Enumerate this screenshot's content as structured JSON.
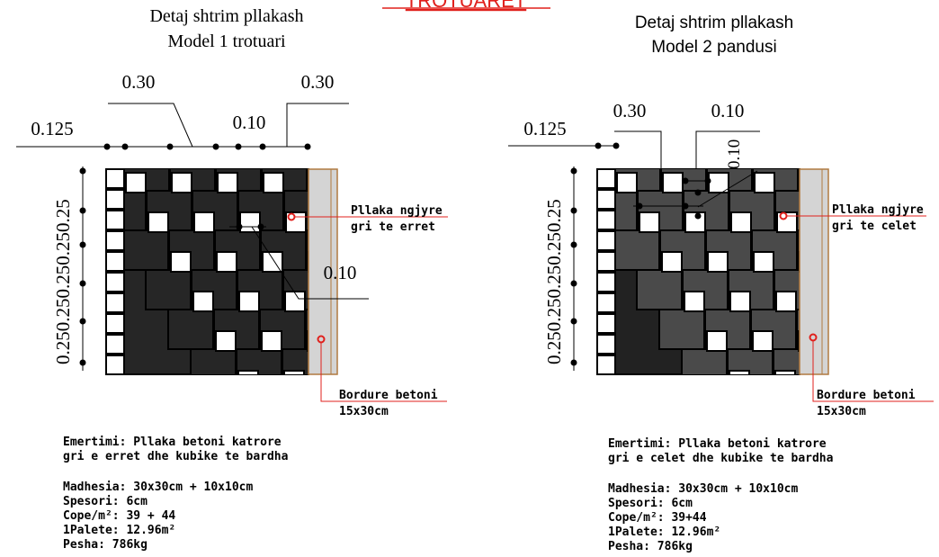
{
  "top_title": "TROTUARET",
  "model1": {
    "title_line1": "Detaj shtrim pllakash",
    "title_line2": "Model 1 trotuari",
    "dims": {
      "d030a": "0.30",
      "d030b": "0.30",
      "d0125": "0.125",
      "d010": "0.10",
      "d010b": "0.10",
      "vertical": "0.250.250.250.250.25"
    },
    "label_tiles_1": "Pllaka ngjyre",
    "label_tiles_2": "gri te erret",
    "label_curb_1": "Bordure betoni",
    "label_curb_2": "15x30cm",
    "desc_line1": "Emertimi: Pllaka betoni katrore",
    "desc_line2": "gri e erret dhe kubike te bardha",
    "spec_madhesia": "Madhesia: 30x30cm + 10x10cm",
    "spec_spesori": "Spesori:  6cm",
    "spec_cope": "Cope/m²:  39 + 44",
    "spec_palete": "1Palete:  12.96m²",
    "spec_pesha": "Pesha: 786kg"
  },
  "model2": {
    "title_line1": "Detaj shtrim pllakash",
    "title_line2": "Model 2 pandusi",
    "dims": {
      "d030": "0.30",
      "d010a": "0.10",
      "d010v": "0.10",
      "d0125": "0.125",
      "vertical": "0.250.250.250.250.25"
    },
    "label_tiles_1": "Pllaka ngjyre",
    "label_tiles_2": "gri te celet",
    "label_curb_1": "Bordure betoni",
    "label_curb_2": "15x30cm",
    "desc_line1": "Emertimi: Pllaka betoni katrore",
    "desc_line2": "gri e celet dhe kubike te bardha",
    "spec_madhesia": "Madhesia: 30x30cm + 10x10cm",
    "spec_spesori": "Spesori:  6cm",
    "spec_cope": "Cope/m²:  39+44",
    "spec_palete": "1Palete:  12.96m²",
    "spec_pesha": "Pesha: 786kg"
  },
  "colors": {
    "title_red": "#e0201c",
    "tile_dark": "#262626",
    "tile_light": "#4a4a4a",
    "curb": "#d4d4d4",
    "curb_edge": "#b07a40",
    "leader_red": "#e0201c"
  }
}
